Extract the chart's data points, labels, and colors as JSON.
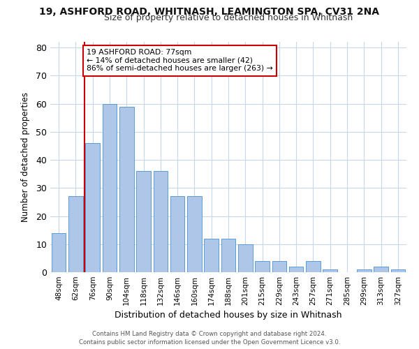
{
  "title": "19, ASHFORD ROAD, WHITNASH, LEAMINGTON SPA, CV31 2NA",
  "subtitle": "Size of property relative to detached houses in Whitnash",
  "xlabel": "Distribution of detached houses by size in Whitnash",
  "ylabel": "Number of detached properties",
  "bar_labels": [
    "48sqm",
    "62sqm",
    "76sqm",
    "90sqm",
    "104sqm",
    "118sqm",
    "132sqm",
    "146sqm",
    "160sqm",
    "174sqm",
    "188sqm",
    "201sqm",
    "215sqm",
    "229sqm",
    "243sqm",
    "257sqm",
    "271sqm",
    "285sqm",
    "299sqm",
    "313sqm",
    "327sqm"
  ],
  "bar_values": [
    14,
    27,
    46,
    60,
    59,
    36,
    36,
    27,
    27,
    12,
    12,
    10,
    4,
    4,
    2,
    4,
    1,
    0,
    1,
    2,
    1
  ],
  "bar_color": "#aec6e8",
  "bar_edge_color": "#5b9bd5",
  "line_color": "#cc0000",
  "annotation_text": "19 ASHFORD ROAD: 77sqm\n← 14% of detached houses are smaller (42)\n86% of semi-detached houses are larger (263) →",
  "annotation_box_color": "#ffffff",
  "annotation_box_edge": "#cc0000",
  "ylim": [
    0,
    82
  ],
  "yticks": [
    0,
    10,
    20,
    30,
    40,
    50,
    60,
    70,
    80
  ],
  "background_color": "#ffffff",
  "grid_color": "#c8d8ec",
  "footer_line1": "Contains HM Land Registry data © Crown copyright and database right 2024.",
  "footer_line2": "Contains public sector information licensed under the Open Government Licence v3.0."
}
